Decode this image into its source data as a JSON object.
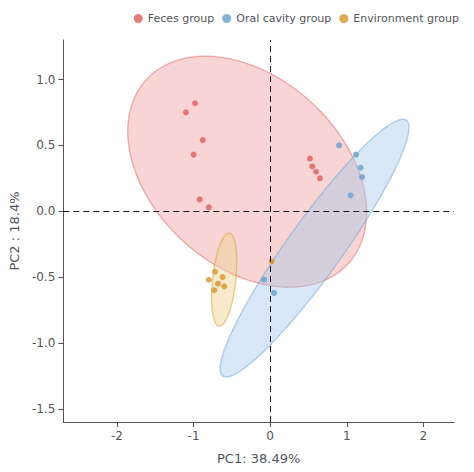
{
  "chart_data": {
    "type": "scatter",
    "xlabel": "PC1: 38.49%",
    "ylabel": "PC2 : 18.4%",
    "xlim": [
      -2.7,
      2.4
    ],
    "ylim": [
      -1.6,
      1.3
    ],
    "xticks": [
      -2,
      -1,
      0,
      1,
      2
    ],
    "yticks": [
      -1.5,
      {
        "value": -1.0,
        "label": "-1.0"
      },
      -0.5,
      {
        "value": 0.0,
        "label": "0.0"
      },
      0.5,
      {
        "value": 1.0,
        "label": "1.0"
      }
    ],
    "grid": false,
    "legend": "upper right",
    "marker": "circle",
    "hlines": [
      0
    ],
    "vlines": [
      0
    ],
    "series": [
      {
        "name": "Feces group",
        "color": "#D95F5F",
        "fill_color": "#EFA0A0",
        "values": [
          [
            -0.98,
            0.82
          ],
          [
            -1.1,
            0.75
          ],
          [
            -0.88,
            0.54
          ],
          [
            -1.0,
            0.43
          ],
          [
            -0.92,
            0.09
          ],
          [
            -0.8,
            0.03
          ],
          [
            0.52,
            0.4
          ],
          [
            0.6,
            0.3
          ],
          [
            0.65,
            0.25
          ],
          [
            0.55,
            0.34
          ]
        ],
        "ellipse": {
          "x_center": -0.3,
          "y_center": 0.3,
          "width": 3.2,
          "height": 1.6,
          "angle": -15
        }
      },
      {
        "name": "Oral cavity group",
        "color": "#6A9FCA",
        "fill_color": "#A8C8E8",
        "values": [
          [
            0.9,
            0.5
          ],
          [
            1.12,
            0.43
          ],
          [
            1.18,
            0.33
          ],
          [
            1.2,
            0.26
          ],
          [
            1.05,
            0.12
          ],
          [
            -0.08,
            -0.52
          ],
          [
            0.05,
            -0.62
          ]
        ],
        "ellipse": {
          "x_center": 0.58,
          "y_center": -0.28,
          "width": 0.55,
          "height": 3.1,
          "angle": -52
        }
      },
      {
        "name": "Environment group",
        "color": "#D4972A",
        "fill_color": "#EDD090",
        "values": [
          [
            -0.72,
            -0.46
          ],
          [
            -0.8,
            -0.52
          ],
          [
            -0.68,
            -0.55
          ],
          [
            -0.6,
            -0.57
          ],
          [
            -0.73,
            -0.6
          ],
          [
            -0.62,
            -0.5
          ],
          [
            0.02,
            -0.38
          ]
        ],
        "ellipse": {
          "x_center": -0.6,
          "y_center": -0.52,
          "width": 0.3,
          "height": 0.72,
          "angle": -12
        }
      }
    ]
  }
}
